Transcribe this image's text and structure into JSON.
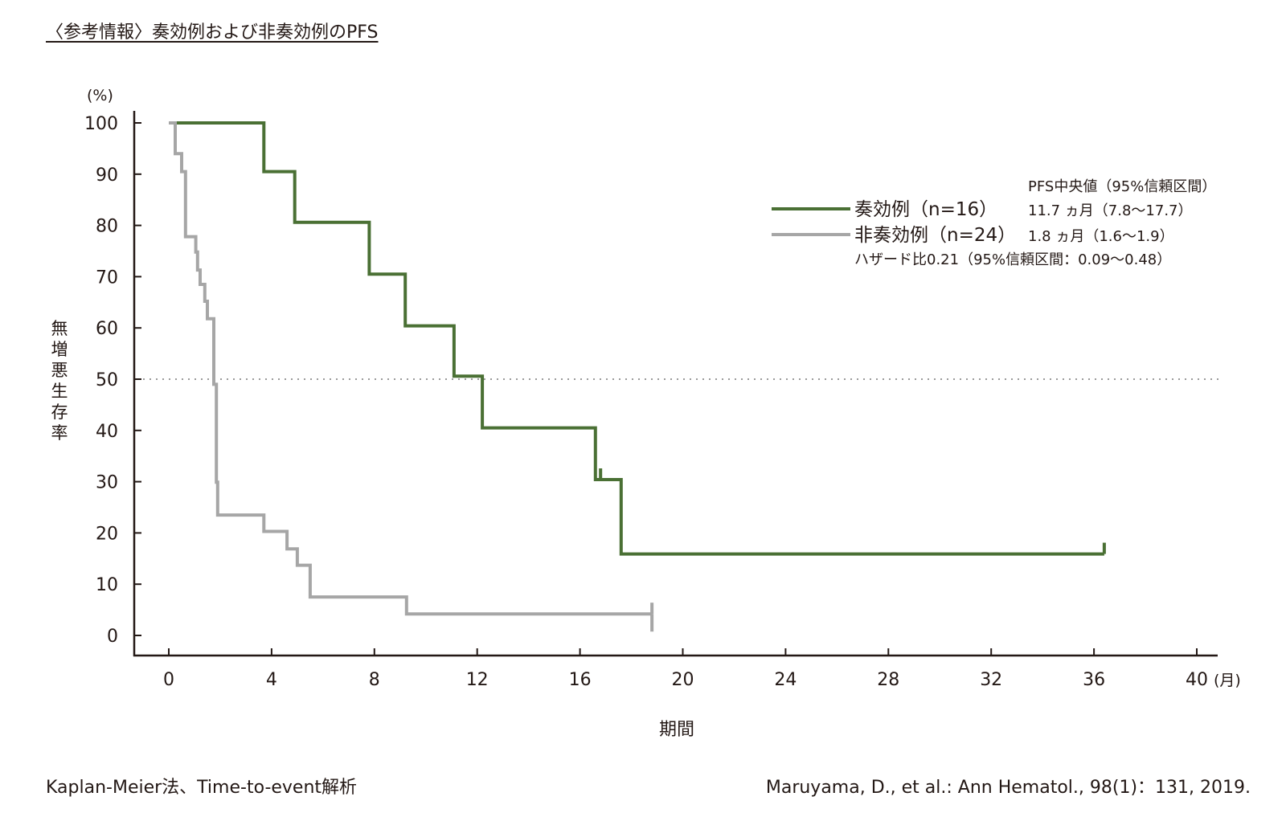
{
  "title": "〈参考情報〉奏効例および非奏効例のPFS",
  "footer_left": "Kaplan-Meier法、Time-to-event解析",
  "footer_right": "Maruyama, D., et al.: Ann Hematol., 98(1)：131, 2019.",
  "colors": {
    "responder": "#4a7034",
    "non_responder": "#a6a6a6",
    "axis": "#231815",
    "reference": "#9a9a9a"
  },
  "chart_data": {
    "type": "line",
    "step": true,
    "ylabel": "無増悪生存率",
    "yunit": "(%)",
    "xlabel": "期間",
    "xunit": "(月)",
    "xlim": [
      0,
      40
    ],
    "ylim": [
      0,
      100
    ],
    "xticks": [
      "0",
      "4",
      "8",
      "12",
      "16",
      "20",
      "24",
      "28",
      "32",
      "36",
      "40"
    ],
    "yticks": [
      "0",
      "10",
      "20",
      "30",
      "40",
      "50",
      "60",
      "70",
      "80",
      "90",
      "100"
    ],
    "reference_line_y": 50,
    "legend_header": "PFS中央値（95%信頼区間）",
    "hazard_ratio": "ハザード比0.21（95%信頼区間：0.09〜0.48）",
    "series": [
      {
        "name": "奏効例（n=16）",
        "median": "11.7 ヵ月（7.8〜17.7）",
        "points": [
          [
            0,
            100
          ],
          [
            3.7,
            100
          ],
          [
            3.7,
            90.5
          ],
          [
            4.9,
            90.5
          ],
          [
            4.9,
            80.6
          ],
          [
            7.8,
            80.6
          ],
          [
            7.8,
            70.5
          ],
          [
            9.2,
            70.5
          ],
          [
            9.2,
            60.4
          ],
          [
            11.1,
            60.4
          ],
          [
            11.1,
            50.6
          ],
          [
            12.2,
            50.6
          ],
          [
            12.2,
            40.5
          ],
          [
            16.6,
            40.5
          ],
          [
            16.6,
            30.4
          ],
          [
            17.6,
            30.4
          ],
          [
            17.6,
            15.9
          ],
          [
            36.4,
            15.9
          ]
        ],
        "censored": [
          [
            16.8,
            30.4
          ],
          [
            36.4,
            15.9
          ]
        ]
      },
      {
        "name": "非奏効例（n=24）",
        "median": "1.8 ヵ月（1.6〜1.9）",
        "points": [
          [
            0,
            100
          ],
          [
            0.25,
            100
          ],
          [
            0.25,
            94.0
          ],
          [
            0.5,
            94.0
          ],
          [
            0.5,
            90.5
          ],
          [
            0.65,
            90.5
          ],
          [
            0.65,
            77.8
          ],
          [
            1.05,
            77.8
          ],
          [
            1.05,
            74.8
          ],
          [
            1.12,
            74.8
          ],
          [
            1.12,
            71.3
          ],
          [
            1.22,
            71.3
          ],
          [
            1.22,
            68.5
          ],
          [
            1.4,
            68.5
          ],
          [
            1.4,
            65.2
          ],
          [
            1.5,
            65.2
          ],
          [
            1.5,
            61.8
          ],
          [
            1.75,
            61.8
          ],
          [
            1.75,
            49.0
          ],
          [
            1.85,
            49.0
          ],
          [
            1.85,
            29.9
          ],
          [
            1.9,
            29.9
          ],
          [
            1.9,
            23.5
          ],
          [
            3.7,
            23.5
          ],
          [
            3.7,
            20.3
          ],
          [
            4.6,
            20.3
          ],
          [
            4.6,
            16.9
          ],
          [
            5.0,
            16.9
          ],
          [
            5.0,
            13.7
          ],
          [
            5.5,
            13.7
          ],
          [
            5.5,
            7.5
          ],
          [
            9.25,
            7.5
          ],
          [
            9.25,
            4.2
          ],
          [
            18.8,
            4.2
          ]
        ],
        "censored": [
          [
            18.8,
            4.2
          ]
        ]
      }
    ]
  }
}
